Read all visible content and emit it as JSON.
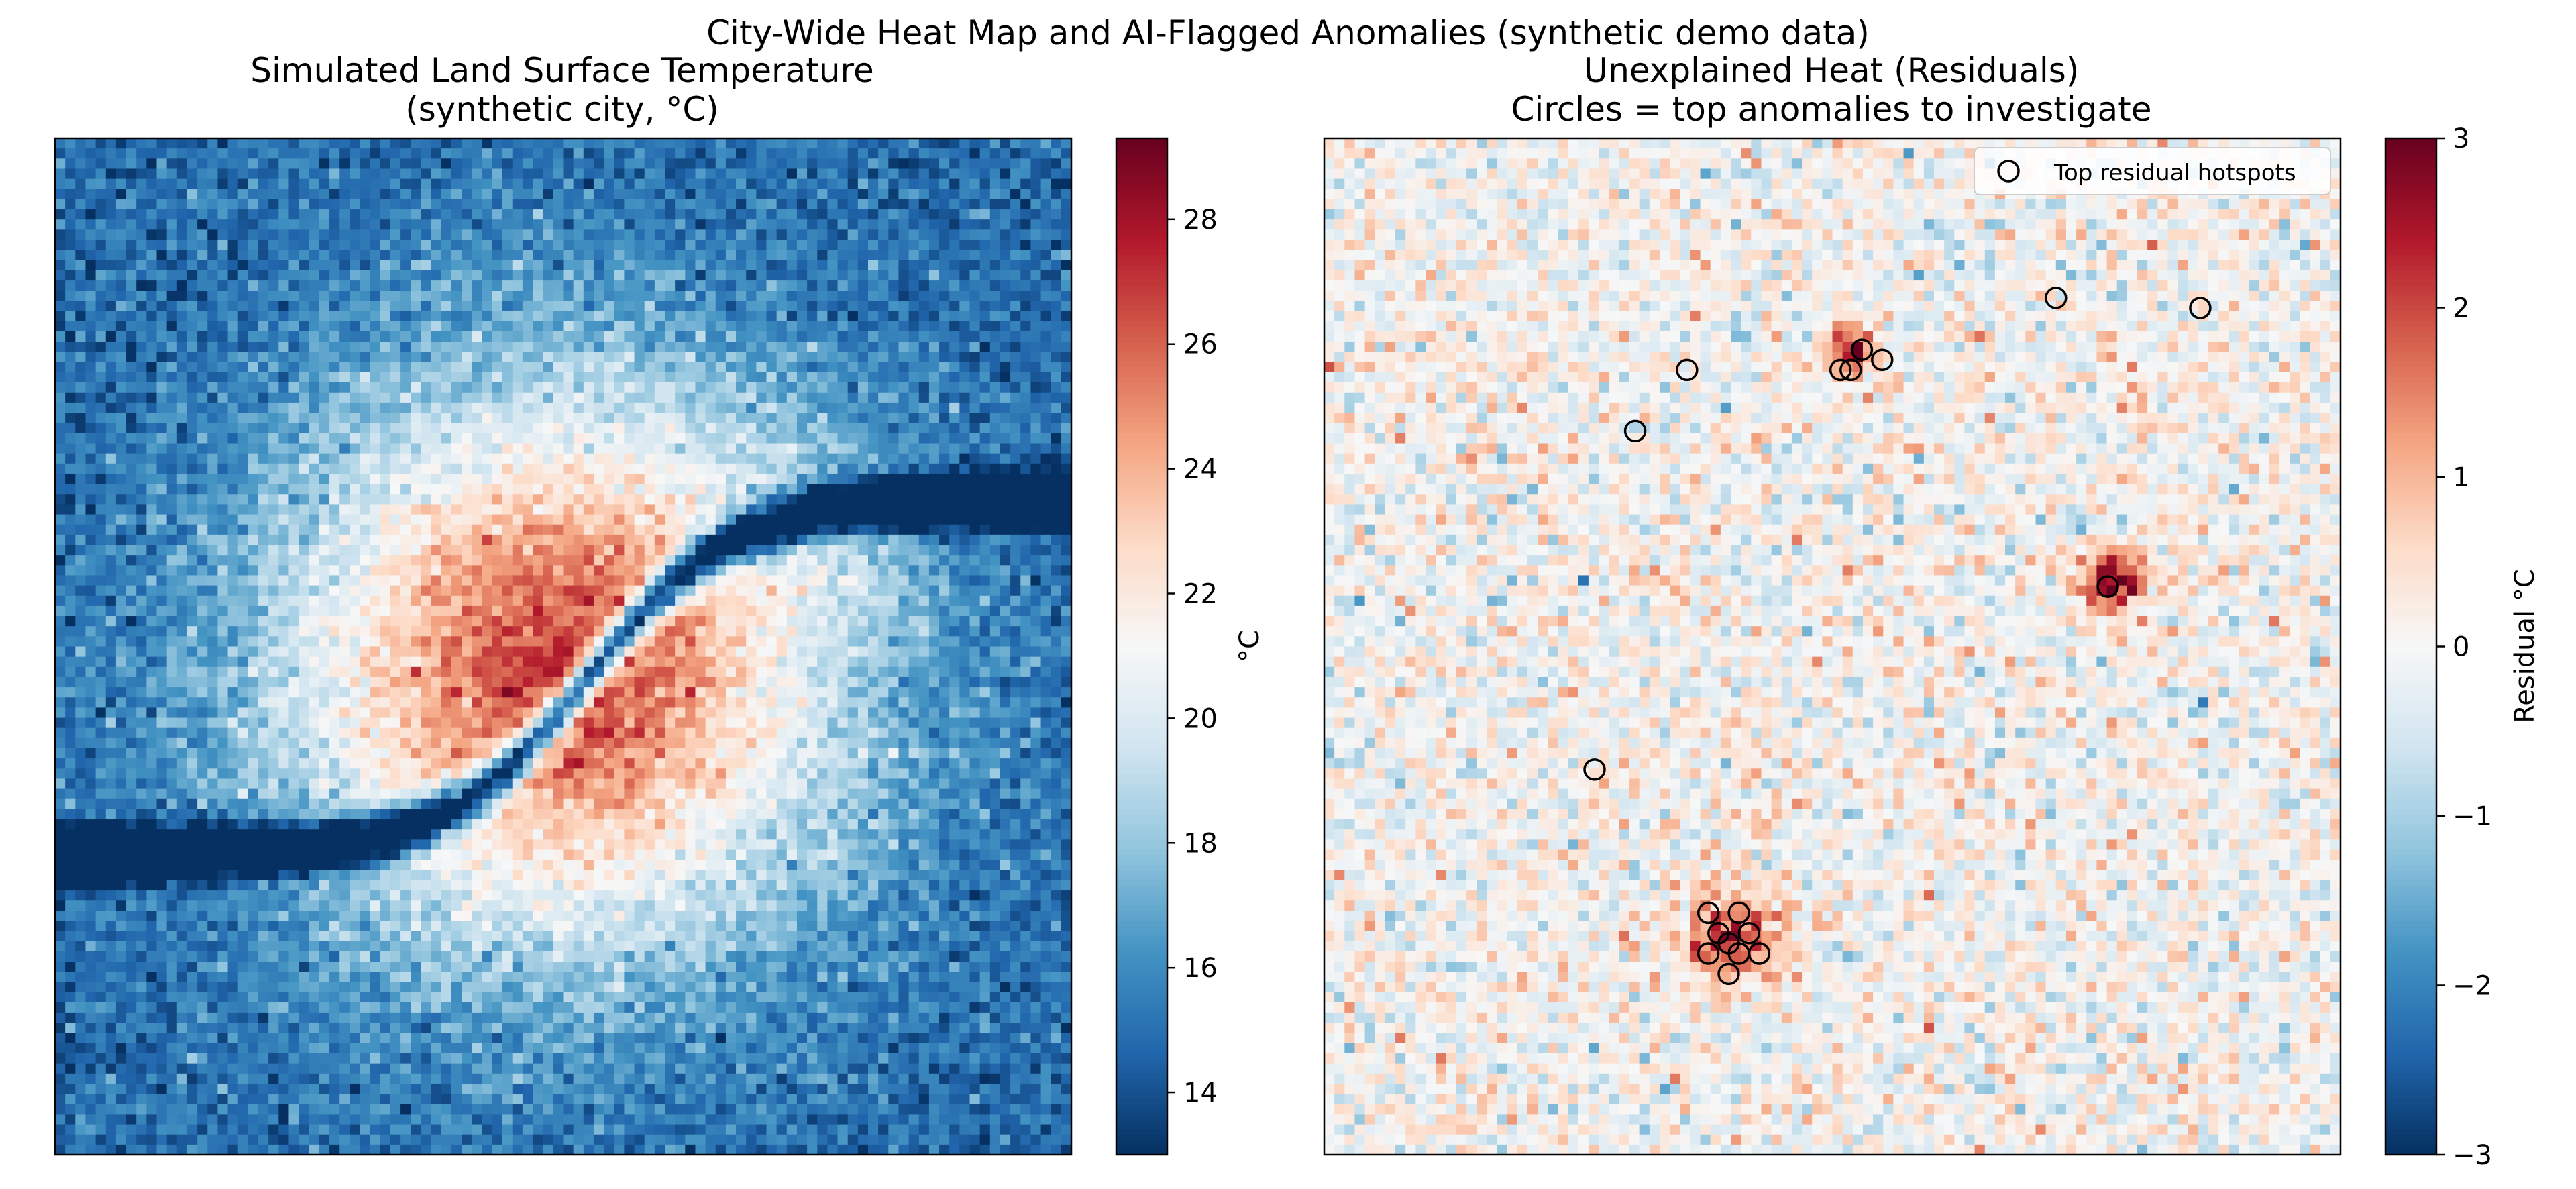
{
  "figure": {
    "suptitle": "City-Wide Heat Map and AI-Flagged Anomalies (synthetic demo data)"
  },
  "chart_data": [
    {
      "type": "heatmap",
      "title": "Simulated Land Surface Temperature",
      "subtitle": "(synthetic city, °C)",
      "grid_size": [
        100,
        100
      ],
      "colormap": "RdBu_r",
      "colormap_stops": [
        "#053061",
        "#2166ac",
        "#4393c3",
        "#92c5de",
        "#d1e5f0",
        "#f7f7f7",
        "#fddbc7",
        "#f4a582",
        "#d6604d",
        "#b2182b",
        "#67001f"
      ],
      "value_range": [
        13.0,
        29.3
      ],
      "hidden_axes": true,
      "colorbar": {
        "label": "°C",
        "ticks": [
          "14",
          "16",
          "18",
          "20",
          "22",
          "24",
          "26",
          "28"
        ]
      },
      "description_values": {
        "urban_core_center": [
          0.52,
          0.5
        ],
        "peak_temperature": 29.0,
        "edge_temperature": 15.0,
        "river_temperature": 16.0
      }
    },
    {
      "type": "heatmap",
      "title": "Unexplained Heat (Residuals)",
      "subtitle": "Circles = top anomalies to investigate",
      "grid_size": [
        100,
        100
      ],
      "colormap": "RdBu_r",
      "colormap_stops": [
        "#053061",
        "#2166ac",
        "#4393c3",
        "#92c5de",
        "#d1e5f0",
        "#f7f7f7",
        "#fddbc7",
        "#f4a582",
        "#d6604d",
        "#b2182b",
        "#67001f"
      ],
      "value_range": [
        -3,
        3
      ],
      "hidden_axes": true,
      "colorbar": {
        "label": "Residual °C",
        "ticks": [
          "−3",
          "−2",
          "−1",
          "0",
          "1",
          "2",
          "3"
        ]
      },
      "legend": {
        "position": "upper right",
        "entries": [
          "Top residual hotspots"
        ]
      },
      "hotspots": [
        [
          71.5,
          15.2
        ],
        [
          85.7,
          16.2
        ],
        [
          35.2,
          22.3
        ],
        [
          50.3,
          22.3
        ],
        [
          51.3,
          22.3
        ],
        [
          52.4,
          20.3
        ],
        [
          54.4,
          21.3
        ],
        [
          30.1,
          28.3
        ],
        [
          76.6,
          43.6
        ],
        [
          26.1,
          61.6
        ],
        [
          37.3,
          75.7
        ],
        [
          40.3,
          75.7
        ],
        [
          38.3,
          77.7
        ],
        [
          41.3,
          77.7
        ],
        [
          39.3,
          78.7
        ],
        [
          37.3,
          79.7
        ],
        [
          40.3,
          79.7
        ],
        [
          42.3,
          79.7
        ],
        [
          39.3,
          81.7
        ]
      ]
    }
  ]
}
